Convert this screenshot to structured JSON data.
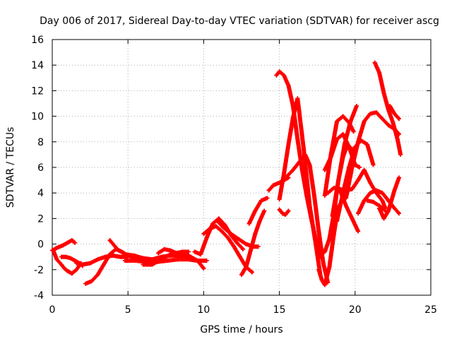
{
  "chart_data": {
    "type": "scatter",
    "title": "Day 006 of 2017, Sidereal Day-to-day VTEC variation (SDTVAR) for receiver ascg",
    "xlabel": "GPS time / hours",
    "ylabel": "SDTVAR / TECUs",
    "xlim": [
      0,
      25
    ],
    "ylim": [
      -4,
      16
    ],
    "xticks": [
      0,
      5,
      10,
      15,
      20,
      25
    ],
    "yticks": [
      -4,
      -2,
      0,
      2,
      4,
      6,
      8,
      10,
      12,
      14,
      16
    ],
    "grid": true,
    "marker": "+",
    "color": "#ff0000",
    "series": [
      {
        "name": "s1",
        "x": [
          0.0,
          0.3,
          0.7,
          1.0,
          1.3,
          1.5
        ],
        "y": [
          -0.5,
          -0.3,
          -0.1,
          0.1,
          0.3,
          0.1
        ]
      },
      {
        "name": "s2",
        "x": [
          0.1,
          0.3,
          0.6,
          0.8,
          1.0,
          1.3,
          1.6,
          1.9
        ],
        "y": [
          -0.6,
          -1.2,
          -1.6,
          -1.9,
          -2.1,
          -2.3,
          -2.0,
          -1.5
        ]
      },
      {
        "name": "s3",
        "x": [
          0.6,
          0.9,
          1.2,
          1.5,
          1.8,
          2.0
        ],
        "y": [
          -1.0,
          -1.0,
          -1.1,
          -1.3,
          -1.5,
          -1.7
        ]
      },
      {
        "name": "s4",
        "x": [
          1.6,
          2.0,
          2.5,
          3.0,
          3.5,
          4.0,
          4.5,
          5.0
        ],
        "y": [
          -1.5,
          -1.6,
          -1.5,
          -1.2,
          -1.0,
          -0.9,
          -1.0,
          -1.0
        ]
      },
      {
        "name": "s5",
        "x": [
          2.2,
          2.6,
          3.0,
          3.4,
          3.8,
          4.2,
          4.6,
          5.0,
          5.4,
          5.8,
          6.2
        ],
        "y": [
          -3.1,
          -2.9,
          -2.4,
          -1.6,
          -0.8,
          -0.4,
          -0.6,
          -0.9,
          -1.1,
          -1.2,
          -1.3
        ]
      },
      {
        "name": "s6",
        "x": [
          3.8,
          4.3,
          4.8,
          5.4,
          6.0,
          6.6,
          7.2,
          7.8,
          8.4,
          9.0
        ],
        "y": [
          0.3,
          -0.4,
          -0.8,
          -0.9,
          -1.1,
          -1.2,
          -1.0,
          -0.9,
          -0.9,
          -1.0
        ]
      },
      {
        "name": "s7",
        "x": [
          4.8,
          5.5,
          6.2,
          6.9,
          7.6,
          8.3,
          9.0,
          9.6,
          10.2
        ],
        "y": [
          -1.3,
          -1.3,
          -1.4,
          -1.4,
          -1.3,
          -1.2,
          -1.2,
          -1.3,
          -1.3
        ]
      },
      {
        "name": "s8",
        "x": [
          6.0,
          6.6,
          7.2,
          7.8,
          8.4,
          9.0,
          9.6,
          10.0
        ],
        "y": [
          -1.6,
          -1.6,
          -1.2,
          -0.8,
          -0.7,
          -0.9,
          -1.3,
          -1.9
        ]
      },
      {
        "name": "s9",
        "x": [
          7.0,
          7.4,
          7.8,
          8.2,
          8.6,
          9.0
        ],
        "y": [
          -0.7,
          -0.4,
          -0.5,
          -0.7,
          -0.6,
          -0.6
        ]
      },
      {
        "name": "s10",
        "x": [
          9.4,
          9.8,
          10.2,
          10.6,
          11.0,
          11.4,
          11.8,
          12.2,
          12.6
        ],
        "y": [
          -0.6,
          -0.8,
          0.5,
          1.6,
          2.0,
          1.5,
          0.7,
          0.1,
          -0.4
        ]
      },
      {
        "name": "s11",
        "x": [
          10.0,
          10.4,
          10.8,
          11.2,
          11.6,
          12.0,
          12.4,
          12.8,
          13.2
        ],
        "y": [
          0.8,
          1.2,
          1.4,
          1.0,
          0.5,
          -0.2,
          -1.0,
          -1.8,
          -2.2
        ]
      },
      {
        "name": "s12",
        "x": [
          10.9,
          11.3,
          11.8,
          12.3,
          12.8,
          13.3,
          13.6
        ],
        "y": [
          1.8,
          1.3,
          0.8,
          0.4,
          0.0,
          -0.2,
          -0.2
        ]
      },
      {
        "name": "s13",
        "x": [
          12.5,
          12.8,
          13.1,
          13.4,
          13.7,
          14.0
        ],
        "y": [
          -2.4,
          -1.8,
          -0.5,
          0.8,
          1.8,
          2.6
        ]
      },
      {
        "name": "s14",
        "x": [
          13.0,
          13.4,
          13.8,
          14.2
        ],
        "y": [
          1.6,
          2.6,
          3.4,
          3.6
        ]
      },
      {
        "name": "s15",
        "x": [
          14.3,
          14.6,
          15.0,
          15.3,
          15.6
        ],
        "y": [
          4.2,
          4.6,
          4.8,
          5.0,
          5.2
        ]
      },
      {
        "name": "s16",
        "x": [
          14.8,
          15.0,
          15.3,
          15.6,
          15.9,
          16.2,
          16.5,
          16.8,
          17.1,
          17.4,
          17.7
        ],
        "y": [
          13.2,
          13.5,
          13.2,
          12.4,
          10.8,
          8.2,
          5.8,
          3.8,
          2.0,
          0.4,
          -1.0
        ]
      },
      {
        "name": "s17",
        "x": [
          15.0,
          15.2,
          15.4,
          15.6
        ],
        "y": [
          2.7,
          2.4,
          2.3,
          2.6
        ]
      },
      {
        "name": "s18",
        "x": [
          15.0,
          15.3,
          15.6,
          15.9,
          16.2,
          16.6,
          17.0,
          17.4,
          17.7
        ],
        "y": [
          3.5,
          5.5,
          7.8,
          9.9,
          11.4,
          7.5,
          3.0,
          0.0,
          -2.4
        ]
      },
      {
        "name": "s19",
        "x": [
          15.5,
          15.9,
          16.3,
          16.7,
          17.0,
          17.3,
          17.6,
          17.9,
          18.2
        ],
        "y": [
          5.3,
          5.8,
          6.4,
          7.0,
          6.2,
          3.8,
          1.0,
          -1.5,
          -3.0
        ]
      },
      {
        "name": "s20",
        "x": [
          17.6,
          17.8,
          18.0,
          18.3,
          18.6,
          18.9
        ],
        "y": [
          -2.0,
          -2.8,
          -3.2,
          -1.8,
          0.8,
          3.0
        ]
      },
      {
        "name": "s21",
        "x": [
          17.7,
          18.0,
          18.3,
          18.6,
          18.9,
          19.2,
          19.5,
          19.8
        ],
        "y": [
          -0.8,
          -0.6,
          0.4,
          2.4,
          5.0,
          6.8,
          7.8,
          7.4
        ]
      },
      {
        "name": "s22",
        "x": [
          18.0,
          18.4,
          18.8,
          19.2,
          19.6,
          20.0,
          20.3
        ],
        "y": [
          5.8,
          6.8,
          8.2,
          8.6,
          7.6,
          6.2,
          6.0
        ]
      },
      {
        "name": "s23",
        "x": [
          18.0,
          18.4,
          18.8,
          19.2,
          19.6,
          19.9
        ],
        "y": [
          3.8,
          7.0,
          9.6,
          10.0,
          9.5,
          8.8
        ]
      },
      {
        "name": "s24",
        "x": [
          18.2,
          18.6,
          19.0,
          19.4,
          19.8,
          20.2,
          20.6,
          21.0,
          21.4,
          21.8,
          22.0
        ],
        "y": [
          4.0,
          4.4,
          4.3,
          4.2,
          4.3,
          5.0,
          5.8,
          4.8,
          4.0,
          3.4,
          2.8
        ]
      },
      {
        "name": "s25",
        "x": [
          18.5,
          18.9,
          19.3,
          19.7,
          20.1
        ],
        "y": [
          2.2,
          5.0,
          7.8,
          9.6,
          10.8
        ]
      },
      {
        "name": "s26",
        "x": [
          18.8,
          19.2,
          19.6,
          20.0,
          20.4,
          20.8,
          21.2
        ],
        "y": [
          1.8,
          4.0,
          6.0,
          7.6,
          8.1,
          7.8,
          6.2
        ]
      },
      {
        "name": "s27",
        "x": [
          19.0,
          19.4,
          19.8,
          20.2
        ],
        "y": [
          4.2,
          3.0,
          2.0,
          1.0
        ]
      },
      {
        "name": "s28",
        "x": [
          19.4,
          19.8,
          20.2,
          20.6,
          21.0,
          21.4,
          21.8,
          22.2,
          22.6,
          22.9
        ],
        "y": [
          3.6,
          6.0,
          8.0,
          9.6,
          10.2,
          10.3,
          9.8,
          9.3,
          9.0,
          8.6
        ]
      },
      {
        "name": "s29",
        "x": [
          20.2,
          20.6,
          21.0,
          21.4,
          21.8,
          22.2,
          22.6,
          22.9
        ],
        "y": [
          2.4,
          3.4,
          4.0,
          4.2,
          4.0,
          3.4,
          2.8,
          2.4
        ]
      },
      {
        "name": "s30",
        "x": [
          20.8,
          21.2,
          21.6,
          22.0
        ],
        "y": [
          3.4,
          3.3,
          3.0,
          2.6
        ]
      },
      {
        "name": "s31",
        "x": [
          21.3,
          21.6,
          21.9,
          22.2,
          22.5,
          22.8,
          23.0
        ],
        "y": [
          14.2,
          13.4,
          11.8,
          10.5,
          9.5,
          8.2,
          7.0
        ]
      },
      {
        "name": "s32",
        "x": [
          21.6,
          21.9,
          22.2,
          22.6,
          22.9
        ],
        "y": [
          2.8,
          2.0,
          2.6,
          4.2,
          5.2
        ]
      },
      {
        "name": "s33",
        "x": [
          22.3,
          22.6,
          22.9
        ],
        "y": [
          10.8,
          10.2,
          9.8
        ]
      }
    ]
  }
}
